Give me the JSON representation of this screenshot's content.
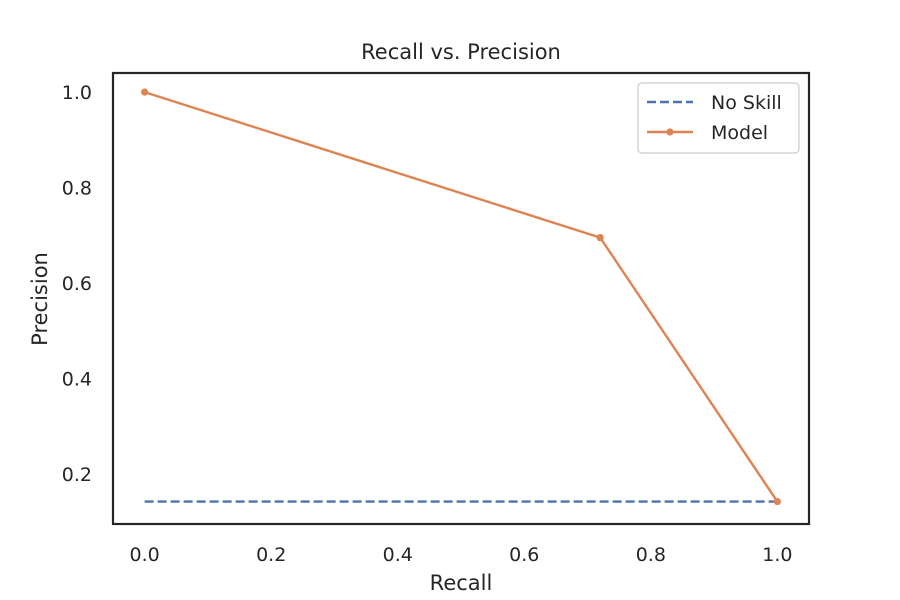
{
  "chart_data": {
    "type": "line",
    "title": "Recall vs. Precision",
    "xlabel": "Recall",
    "ylabel": "Precision",
    "xlim": [
      -0.05,
      1.05
    ],
    "ylim": [
      0.095,
      1.04
    ],
    "xticks": [
      0.0,
      0.2,
      0.4,
      0.6,
      0.8,
      1.0
    ],
    "xtick_labels": [
      "0.0",
      "0.2",
      "0.4",
      "0.6",
      "0.8",
      "1.0"
    ],
    "yticks": [
      0.2,
      0.4,
      0.6,
      0.8,
      1.0
    ],
    "ytick_labels": [
      "0.2",
      "0.4",
      "0.6",
      "0.8",
      "1.0"
    ],
    "grid": false,
    "legend_position": "top-right",
    "series": [
      {
        "name": "No Skill",
        "style": "dashed",
        "marker": "none",
        "color": "#4c72b0",
        "x": [
          0.0,
          1.0
        ],
        "y": [
          0.142,
          0.142
        ]
      },
      {
        "name": "Model",
        "style": "solid",
        "marker": "dot",
        "color": "#dd8452",
        "x": [
          0.0,
          0.72,
          1.0
        ],
        "y": [
          1.0,
          0.695,
          0.142
        ]
      }
    ]
  }
}
